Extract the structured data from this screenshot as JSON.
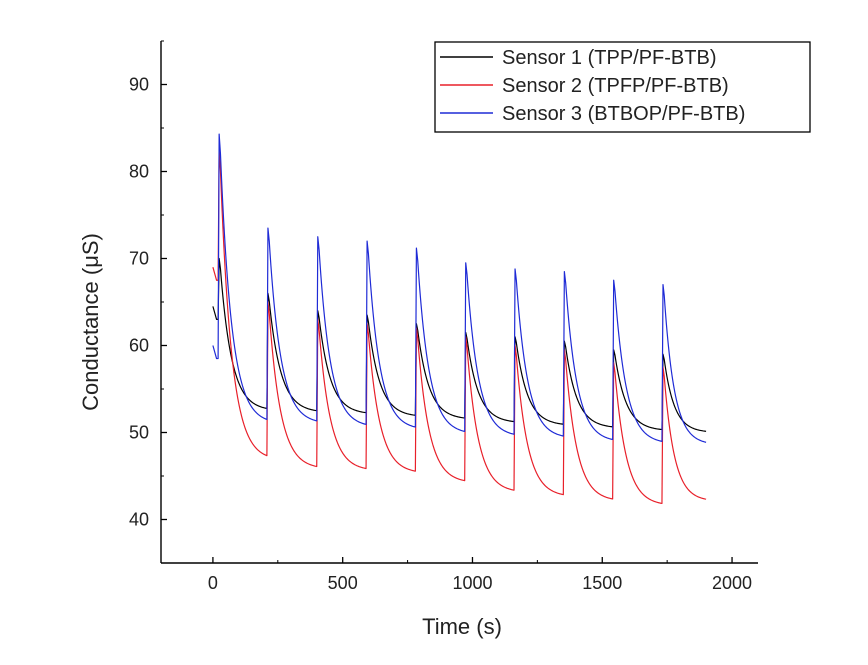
{
  "chart_data": {
    "type": "line",
    "title": "",
    "xlabel": "Time (s)",
    "ylabel": "Conductance (μS)",
    "xlim": [
      -200,
      2100
    ],
    "ylim": [
      35,
      95
    ],
    "xticks": [
      0,
      500,
      1000,
      1500,
      2000
    ],
    "yticks": [
      40,
      50,
      60,
      70,
      80,
      90
    ],
    "x_tick_labels": [
      "0",
      "500",
      "1000",
      "1500",
      "2000"
    ],
    "y_tick_labels": [
      "40",
      "50",
      "60",
      "70",
      "80",
      "90"
    ],
    "grid": false,
    "legend_position": "top-right",
    "pulse_times": [
      20,
      208,
      400,
      590,
      780,
      970,
      1160,
      1350,
      1540,
      1730
    ],
    "series": [
      {
        "name": "Sensor 1 (TPP/PF-BTB)",
        "color": "#000000",
        "start_value": 64.5,
        "end_time": 1900,
        "peaks": [
          70.0,
          66.0,
          64.0,
          63.5,
          62.5,
          61.5,
          61.0,
          60.5,
          59.5,
          59.0
        ],
        "troughs": [
          52.5,
          52.3,
          52.1,
          51.8,
          51.5,
          51.1,
          50.8,
          50.5,
          50.2,
          50.0
        ]
      },
      {
        "name": "Sensor 2 (TPFP/PF-BTB)",
        "color": "#e8202a",
        "start_value": 69.0,
        "end_time": 1900,
        "peaks": [
          82.5,
          65.0,
          63.0,
          62.5,
          62.0,
          61.0,
          60.0,
          59.5,
          58.0,
          57.5
        ],
        "troughs": [
          46.8,
          45.8,
          45.6,
          45.3,
          44.2,
          43.1,
          42.6,
          42.1,
          41.6,
          42.1
        ]
      },
      {
        "name": "Sensor 3 (BTBOP/PF-BTB)",
        "color": "#1f2bd6",
        "start_value": 60.0,
        "end_time": 1900,
        "peaks": [
          84.3,
          73.5,
          72.5,
          72.0,
          71.2,
          69.5,
          68.8,
          68.5,
          67.5,
          67.0
        ],
        "troughs": [
          51.0,
          51.0,
          50.6,
          50.3,
          49.8,
          49.5,
          49.3,
          48.9,
          48.7,
          48.6
        ]
      }
    ]
  }
}
